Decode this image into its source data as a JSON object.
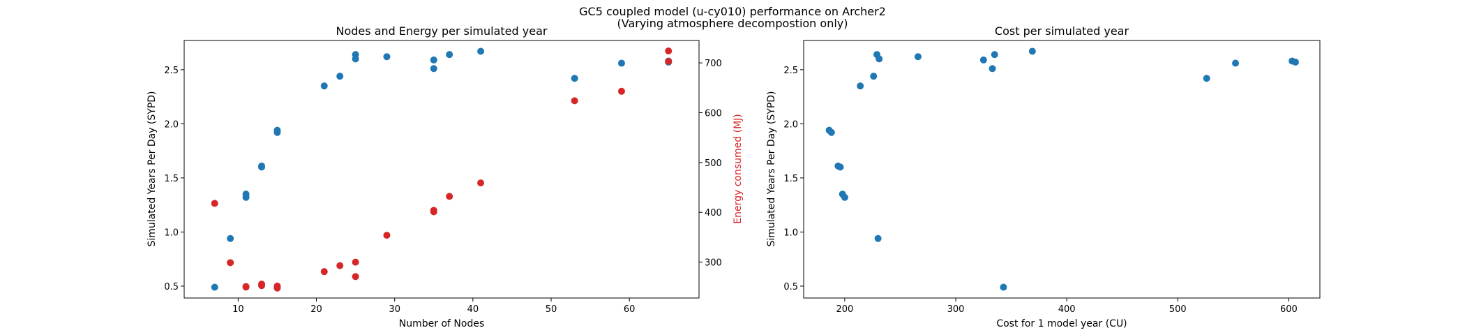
{
  "figure": {
    "suptitle_line1": "GC5 coupled model (u-cy010) performance on Archer2",
    "suptitle_line2": "(Varying atmosphere decompostion only)"
  },
  "colors": {
    "blue": "#1f77b4",
    "red": "#d62728"
  },
  "chart_data": [
    {
      "type": "scatter",
      "title": "Nodes and Energy per simulated year",
      "xlabel": "Number of Nodes",
      "ylabel": "Simulated Years Per Day (SYPD)",
      "y2label": "Energy consumed (MJ)",
      "xlim": [
        3.1,
        68.9
      ],
      "ylim": [
        0.39,
        2.77
      ],
      "y2lim": [
        228,
        745
      ],
      "xticks": [
        10,
        20,
        30,
        40,
        50,
        60
      ],
      "yticks": [
        0.5,
        1.0,
        1.5,
        2.0,
        2.5
      ],
      "y2ticks": [
        300,
        400,
        500,
        600,
        700
      ],
      "grid": false,
      "series": [
        {
          "axis": "left",
          "color": "#1f77b4",
          "x": [
            7,
            9,
            11,
            11,
            13,
            13,
            15,
            15,
            21,
            23,
            25,
            25,
            29,
            35,
            35,
            37,
            41,
            53,
            59,
            65,
            65
          ],
          "y": [
            0.49,
            0.94,
            1.35,
            1.32,
            1.61,
            1.6,
            1.94,
            1.92,
            2.35,
            2.44,
            2.64,
            2.6,
            2.62,
            2.59,
            2.51,
            2.64,
            2.67,
            2.42,
            2.56,
            2.58,
            2.57
          ]
        },
        {
          "axis": "right",
          "color": "#d62728",
          "x": [
            7,
            9,
            11,
            11,
            13,
            13,
            15,
            15,
            21,
            23,
            25,
            25,
            29,
            35,
            35,
            37,
            41,
            53,
            59,
            65,
            65
          ],
          "y": [
            418,
            299,
            251,
            250,
            256,
            253,
            252,
            248,
            281,
            293,
            300,
            271,
            354,
            404,
            401,
            432,
            459,
            624,
            643,
            724,
            703
          ]
        }
      ]
    },
    {
      "type": "scatter",
      "title": "Cost per simulated year",
      "xlabel": "Cost for 1 model year (CU)",
      "ylabel": "Simulated Years Per Day (SYPD)",
      "xlim": [
        163,
        628
      ],
      "ylim": [
        0.39,
        2.77
      ],
      "xticks": [
        200,
        300,
        400,
        500,
        600
      ],
      "yticks": [
        0.5,
        1.0,
        1.5,
        2.0,
        2.5
      ],
      "grid": false,
      "series": [
        {
          "color": "#1f77b4",
          "x": [
            186,
            188,
            194,
            196,
            198,
            200,
            214,
            226,
            229,
            231,
            230,
            266,
            325,
            333,
            335,
            369,
            343,
            526,
            552,
            603,
            606
          ],
          "y": [
            1.94,
            1.92,
            1.61,
            1.6,
            1.35,
            1.32,
            2.35,
            2.44,
            2.64,
            2.6,
            0.94,
            2.62,
            2.59,
            2.51,
            2.64,
            2.67,
            0.49,
            2.42,
            2.56,
            2.58,
            2.57
          ]
        }
      ]
    }
  ]
}
